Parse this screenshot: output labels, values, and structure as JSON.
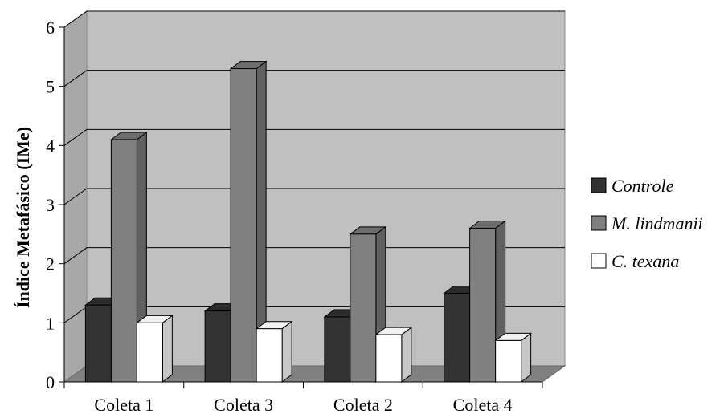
{
  "chart_data": {
    "type": "bar",
    "style": "3d-clustered-column",
    "categories": [
      "Coleta 1",
      "Coleta 3",
      "Coleta 2",
      "Coleta 4"
    ],
    "series": [
      {
        "name": "Controle",
        "values": [
          1.3,
          1.2,
          1.1,
          1.5
        ],
        "color": "#333333"
      },
      {
        "name": "M. lindmanii",
        "values": [
          4.1,
          5.3,
          2.5,
          2.6
        ],
        "color": "#808080"
      },
      {
        "name": "C. texana",
        "values": [
          1.0,
          0.9,
          0.8,
          0.7
        ],
        "color": "#ffffff"
      }
    ],
    "title": "",
    "xlabel": "",
    "ylabel": "Índice Metafásico (IMe)",
    "ylim": [
      0,
      6
    ],
    "yticks": [
      0,
      1,
      2,
      3,
      4,
      5,
      6
    ],
    "grid": true,
    "legend_position": "right",
    "colors": {
      "wall": "#c0c0c0",
      "floor": "#808080"
    }
  }
}
